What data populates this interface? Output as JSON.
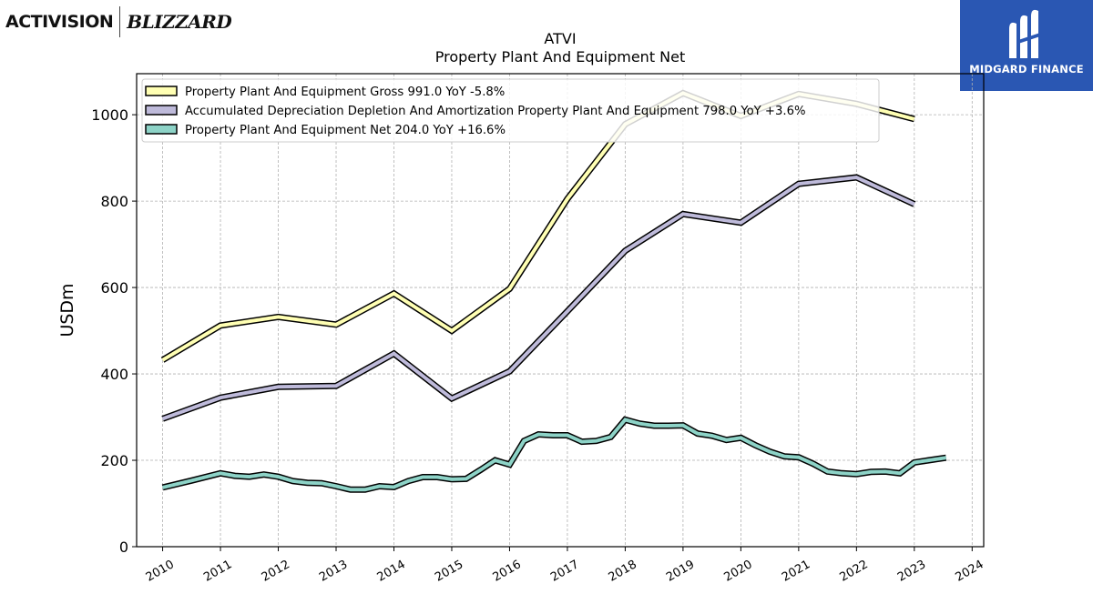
{
  "logos": {
    "activision": "ACTIVISION",
    "blizzard": "BLIZZARD",
    "midgard": "MIDGARD FINANCE"
  },
  "chart_data": {
    "type": "line",
    "title": "ATVI",
    "subtitle": "Property Plant And Equipment Net",
    "ylabel": "USDm",
    "xlabel": "",
    "ylim": [
      0,
      1095
    ],
    "xlim": [
      2009.55,
      2024.2
    ],
    "yticks": [
      0,
      200,
      400,
      600,
      800,
      1000
    ],
    "xticks": [
      2010,
      2011,
      2012,
      2013,
      2014,
      2015,
      2016,
      2017,
      2018,
      2019,
      2020,
      2021,
      2022,
      2023,
      2024
    ],
    "grid": true,
    "legend_position": "top-left",
    "series": [
      {
        "name": "Property Plant And Equipment Gross",
        "legend_label": "Property Plant And Equipment Gross  991.0 YoY -5.8%",
        "color": "#ffffb3",
        "points": [
          [
            2010.0,
            432
          ],
          [
            2011.0,
            512
          ],
          [
            2012.0,
            532
          ],
          [
            2013.0,
            514
          ],
          [
            2014.0,
            586
          ],
          [
            2015.0,
            500
          ],
          [
            2016.0,
            597
          ],
          [
            2017.0,
            805
          ],
          [
            2018.0,
            978
          ],
          [
            2019.0,
            1050
          ],
          [
            2020.0,
            997
          ],
          [
            2021.0,
            1048
          ],
          [
            2022.0,
            1025
          ],
          [
            2023.0,
            990
          ]
        ]
      },
      {
        "name": "Accumulated Depreciation Depletion And Amortization Property Plant And Equipment",
        "legend_label": "Accumulated Depreciation Depletion And Amortization Property Plant And Equipment  798.0 YoY +3.6%",
        "color": "#bebada",
        "points": [
          [
            2010.0,
            296
          ],
          [
            2011.0,
            345
          ],
          [
            2012.0,
            370
          ],
          [
            2013.0,
            372
          ],
          [
            2014.0,
            447
          ],
          [
            2015.0,
            343
          ],
          [
            2016.0,
            406
          ],
          [
            2017.0,
            545
          ],
          [
            2018.0,
            685
          ],
          [
            2019.0,
            770
          ],
          [
            2020.0,
            750
          ],
          [
            2021.0,
            840
          ],
          [
            2022.0,
            855
          ],
          [
            2023.0,
            793
          ]
        ]
      },
      {
        "name": "Property Plant And Equipment Net",
        "legend_label": "Property Plant And Equipment Net  204.0 YoY +16.6%",
        "color": "#8dd3c7",
        "points": [
          [
            2010.0,
            137
          ],
          [
            2010.5,
            153
          ],
          [
            2011.0,
            170
          ],
          [
            2011.25,
            164
          ],
          [
            2011.5,
            162
          ],
          [
            2011.75,
            167
          ],
          [
            2012.0,
            162
          ],
          [
            2012.25,
            152
          ],
          [
            2012.5,
            148
          ],
          [
            2012.75,
            147
          ],
          [
            2013.0,
            140
          ],
          [
            2013.25,
            132
          ],
          [
            2013.5,
            132
          ],
          [
            2013.75,
            140
          ],
          [
            2014.0,
            138
          ],
          [
            2014.25,
            152
          ],
          [
            2014.5,
            161
          ],
          [
            2014.75,
            161
          ],
          [
            2015.0,
            156
          ],
          [
            2015.25,
            157
          ],
          [
            2015.5,
            178
          ],
          [
            2015.75,
            200
          ],
          [
            2016.0,
            190
          ],
          [
            2016.25,
            245
          ],
          [
            2016.5,
            260
          ],
          [
            2016.75,
            258
          ],
          [
            2017.0,
            258
          ],
          [
            2017.25,
            243
          ],
          [
            2017.5,
            245
          ],
          [
            2017.75,
            254
          ],
          [
            2018.0,
            294
          ],
          [
            2018.25,
            285
          ],
          [
            2018.5,
            280
          ],
          [
            2018.75,
            280
          ],
          [
            2019.0,
            281
          ],
          [
            2019.25,
            262
          ],
          [
            2019.5,
            257
          ],
          [
            2019.75,
            247
          ],
          [
            2020.0,
            252
          ],
          [
            2020.25,
            235
          ],
          [
            2020.5,
            220
          ],
          [
            2020.75,
            209
          ],
          [
            2021.0,
            207
          ],
          [
            2021.25,
            192
          ],
          [
            2021.5,
            174
          ],
          [
            2021.75,
            170
          ],
          [
            2022.0,
            168
          ],
          [
            2022.25,
            173
          ],
          [
            2022.5,
            174
          ],
          [
            2022.75,
            170
          ],
          [
            2023.0,
            195
          ],
          [
            2023.25,
            200
          ],
          [
            2023.55,
            206
          ]
        ]
      }
    ]
  }
}
